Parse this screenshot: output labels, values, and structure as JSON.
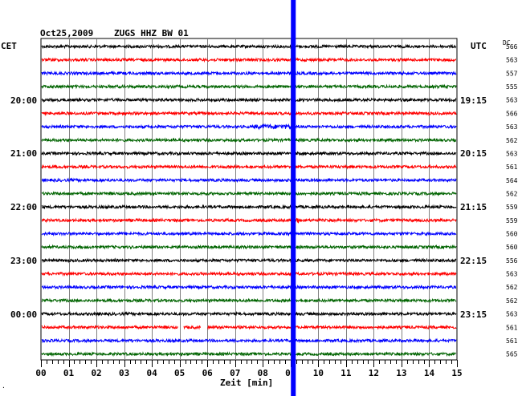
{
  "header": {
    "date": "Oct25,2009",
    "station": "ZUGS HHZ BW 01",
    "left_tz": "CET",
    "right_tz": "UTC",
    "dc_label": "DC"
  },
  "footer": {
    "xaxis_label": "Zeit [min]",
    "corner_mark": "."
  },
  "chart_data": {
    "type": "line",
    "xlabel": "Zeit [min]",
    "xlim": [
      0,
      15
    ],
    "x_ticks": [
      "00",
      "01",
      "02",
      "03",
      "04",
      "05",
      "06",
      "07",
      "08",
      "09",
      "10",
      "11",
      "12",
      "13",
      "14",
      "15"
    ],
    "trace_count": 24,
    "trace_colors": [
      "#000000",
      "#ff0000",
      "#0000ff",
      "#006400"
    ],
    "left_hour_labels": [
      {
        "trace": 4,
        "text": "20:00"
      },
      {
        "trace": 8,
        "text": "21:00"
      },
      {
        "trace": 12,
        "text": "22:00"
      },
      {
        "trace": 16,
        "text": "23:00"
      },
      {
        "trace": 20,
        "text": "00:00"
      }
    ],
    "right_hour_labels": [
      {
        "trace": 4,
        "text": "19:15"
      },
      {
        "trace": 8,
        "text": "20:15"
      },
      {
        "trace": 12,
        "text": "21:15"
      },
      {
        "trace": 16,
        "text": "22:15"
      },
      {
        "trace": 20,
        "text": "23:15"
      }
    ],
    "dc_values": [
      "566",
      "563",
      "557",
      "555",
      "563",
      "566",
      "563",
      "562",
      "563",
      "561",
      "564",
      "562",
      "559",
      "559",
      "560",
      "560",
      "556",
      "563",
      "562",
      "562",
      "563",
      "561",
      "561",
      "565"
    ],
    "event_marker": {
      "minute": 9.1,
      "color": "#0000ff"
    },
    "events": [
      {
        "trace": 6,
        "start_minute": 7.7,
        "end_minute": 9.0,
        "amplitude": 2.8
      },
      {
        "trace": 13,
        "start_minute": 9.0,
        "end_minute": 9.3,
        "amplitude": 3.5
      },
      {
        "trace": 14,
        "start_minute": 9.0,
        "end_minute": 9.2,
        "amplitude": 2.5
      }
    ],
    "gaps": [
      {
        "trace": 21,
        "start_minute": 4.95,
        "end_minute": 5.15
      },
      {
        "trace": 21,
        "start_minute": 5.75,
        "end_minute": 6.0
      }
    ]
  }
}
